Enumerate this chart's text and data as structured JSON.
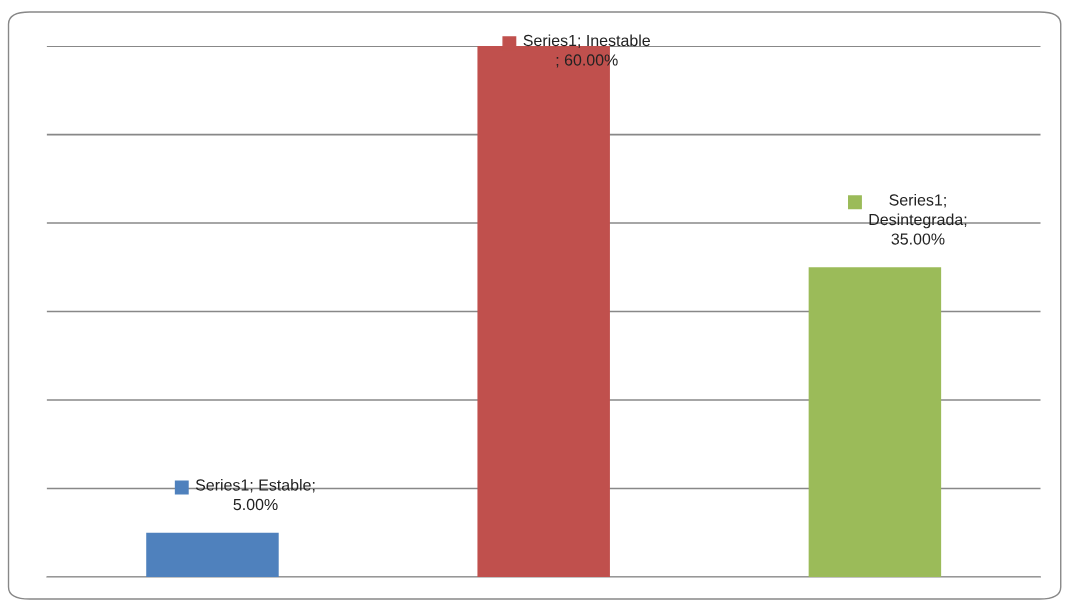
{
  "chart_data": {
    "type": "bar",
    "categories": [
      null,
      null,
      null
    ],
    "series": [
      {
        "colors": [
          "#4f81bd",
          "#c0504d",
          "#9bbb59"
        ],
        "values": [
          5,
          60,
          35
        ],
        "value_labels": [
          "Series1; Estable;\n5.00%",
          "Series1; Inestable\n; 60.00%",
          "Series1;\nDesintegrada;\n35.00%"
        ]
      }
    ],
    "ylim": [
      0,
      60
    ],
    "yticks": [
      0,
      10,
      20,
      30,
      40,
      50,
      60
    ],
    "grid": "y",
    "tick_labels": false,
    "legend": false
  }
}
